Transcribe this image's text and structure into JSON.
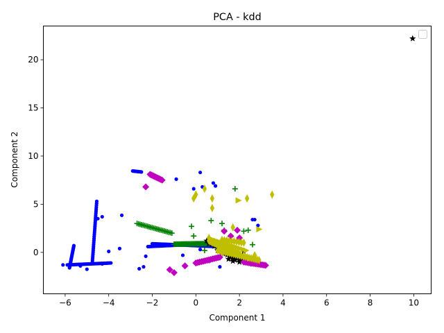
{
  "chart_data": {
    "type": "scatter",
    "title": "PCA - kdd",
    "xlabel": "Component 1",
    "ylabel": "Component 2",
    "xlim": [
      -7,
      10.8
    ],
    "ylim": [
      -4.3,
      23.5
    ],
    "xticks": [
      -6,
      -4,
      -2,
      0,
      2,
      4,
      6,
      8,
      10
    ],
    "yticks": [
      0,
      5,
      10,
      15,
      20
    ],
    "grid": false,
    "legend": {
      "placement": "top-right",
      "entries": []
    },
    "series": [
      {
        "marker": "circle",
        "color": "#0000ff",
        "segments": [
          {
            "from": [
              -5.8,
              -1.6
            ],
            "to": [
              -5.6,
              0.7
            ],
            "n": 22
          },
          {
            "from": [
              -5.9,
              -1.3
            ],
            "to": [
              -3.9,
              -1.1
            ],
            "n": 40
          },
          {
            "from": [
              -4.75,
              -1.0
            ],
            "to": [
              -4.55,
              5.3
            ],
            "n": 32
          },
          {
            "from": [
              -2.9,
              8.45
            ],
            "to": [
              -2.5,
              8.35
            ],
            "n": 10
          },
          {
            "from": [
              -2.0,
              0.9
            ],
            "to": [
              1.5,
              0.55
            ],
            "n": 80
          },
          {
            "from": [
              -2.2,
              0.6
            ],
            "to": [
              0.5,
              0.9
            ],
            "n": 40
          }
        ],
        "points": [
          [
            -6.1,
            -1.3
          ],
          [
            -5.3,
            -1.4
          ],
          [
            -5.0,
            -1.75
          ],
          [
            -4.3,
            -1.2
          ],
          [
            -4.0,
            0.1
          ],
          [
            -3.5,
            0.4
          ],
          [
            -4.3,
            3.7
          ],
          [
            -4.5,
            3.5
          ],
          [
            -3.4,
            3.85
          ],
          [
            -2.4,
            -1.5
          ],
          [
            -2.3,
            -0.4
          ],
          [
            -2.6,
            -1.7
          ],
          [
            -0.9,
            7.6
          ],
          [
            0.2,
            8.3
          ],
          [
            0.3,
            6.8
          ],
          [
            0.8,
            7.2
          ],
          [
            0.9,
            6.9
          ],
          [
            -0.1,
            6.6
          ],
          [
            2.6,
            3.4
          ],
          [
            2.7,
            3.4
          ],
          [
            2.85,
            2.8
          ],
          [
            1.1,
            -1.5
          ],
          [
            -0.6,
            -0.3
          ],
          [
            0.2,
            0.3
          ]
        ]
      },
      {
        "marker": "plus",
        "color": "#008000",
        "segments": [
          {
            "from": [
              -2.7,
              3.0
            ],
            "to": [
              -1.1,
              2.0
            ],
            "n": 24
          },
          {
            "from": [
              -1.0,
              0.85
            ],
            "to": [
              1.4,
              0.95
            ],
            "n": 50
          }
        ],
        "points": [
          [
            -0.2,
            2.7
          ],
          [
            -0.1,
            1.7
          ],
          [
            0.7,
            3.3
          ],
          [
            1.2,
            3.0
          ],
          [
            1.8,
            6.6
          ],
          [
            1.3,
            2.3
          ],
          [
            2.2,
            2.2
          ],
          [
            2.4,
            2.3
          ],
          [
            2.6,
            0.8
          ],
          [
            1.7,
            0.3
          ],
          [
            0.4,
            0.2
          ]
        ]
      },
      {
        "marker": "star",
        "color": "#000000",
        "segments": [
          {
            "from": [
              1.0,
              0.2
            ],
            "to": [
              2.6,
              -1.2
            ],
            "n": 22
          },
          {
            "from": [
              0.5,
              1.2
            ],
            "to": [
              1.8,
              -0.8
            ],
            "n": 12
          }
        ],
        "points": [
          [
            9.95,
            22.2
          ],
          [
            1.5,
            -0.7
          ],
          [
            1.7,
            -0.9
          ],
          [
            2.0,
            -1.0
          ],
          [
            0.6,
            0.9
          ],
          [
            2.2,
            0.1
          ],
          [
            2.8,
            -1.1
          ]
        ]
      },
      {
        "marker": "diamond",
        "color": "#bf00bf",
        "segments": [
          {
            "from": [
              -2.1,
              8.1
            ],
            "to": [
              -1.55,
              7.5
            ],
            "n": 10
          },
          {
            "from": [
              2.2,
              -1.0
            ],
            "to": [
              3.2,
              -1.35
            ],
            "n": 14
          },
          {
            "from": [
              0.0,
              -1.1
            ],
            "to": [
              1.1,
              -0.5
            ],
            "n": 14
          }
        ],
        "points": [
          [
            -2.3,
            6.8
          ],
          [
            -0.5,
            -1.4
          ],
          [
            -1.2,
            -1.8
          ],
          [
            -1.0,
            -2.1
          ],
          [
            1.3,
            2.2
          ],
          [
            1.9,
            2.3
          ],
          [
            2.0,
            1.5
          ],
          [
            1.6,
            1.7
          ],
          [
            0.6,
            -0.8
          ],
          [
            2.6,
            -0.7
          ]
        ]
      },
      {
        "marker": "thin_diamond",
        "color": "#bfbf00",
        "segments": [
          {
            "from": [
              0.6,
              1.2
            ],
            "to": [
              2.0,
              -0.2
            ],
            "n": 26
          },
          {
            "from": [
              1.0,
              0.2
            ],
            "to": [
              2.9,
              -0.8
            ],
            "n": 22
          },
          {
            "from": [
              1.2,
              1.3
            ],
            "to": [
              2.2,
              1.0
            ],
            "n": 10
          }
        ],
        "points": [
          [
            -0.1,
            5.6
          ],
          [
            0.0,
            6.0
          ],
          [
            0.4,
            6.6
          ],
          [
            0.75,
            5.6
          ],
          [
            0.75,
            4.6
          ],
          [
            2.35,
            5.6
          ],
          [
            3.5,
            6.0
          ],
          [
            1.7,
            2.6
          ],
          [
            0.6,
            1.5
          ],
          [
            2.7,
            -0.3
          ]
        ]
      },
      {
        "marker": "triangle_right",
        "color": "#bfbf00",
        "segments": [
          {
            "from": [
              0.8,
              1.3
            ],
            "to": [
              2.3,
              0.2
            ],
            "n": 12
          }
        ],
        "points": [
          [
            1.95,
            5.4
          ],
          [
            2.9,
            2.4
          ],
          [
            2.5,
            -0.6
          ],
          [
            1.2,
            0.6
          ]
        ]
      }
    ]
  }
}
